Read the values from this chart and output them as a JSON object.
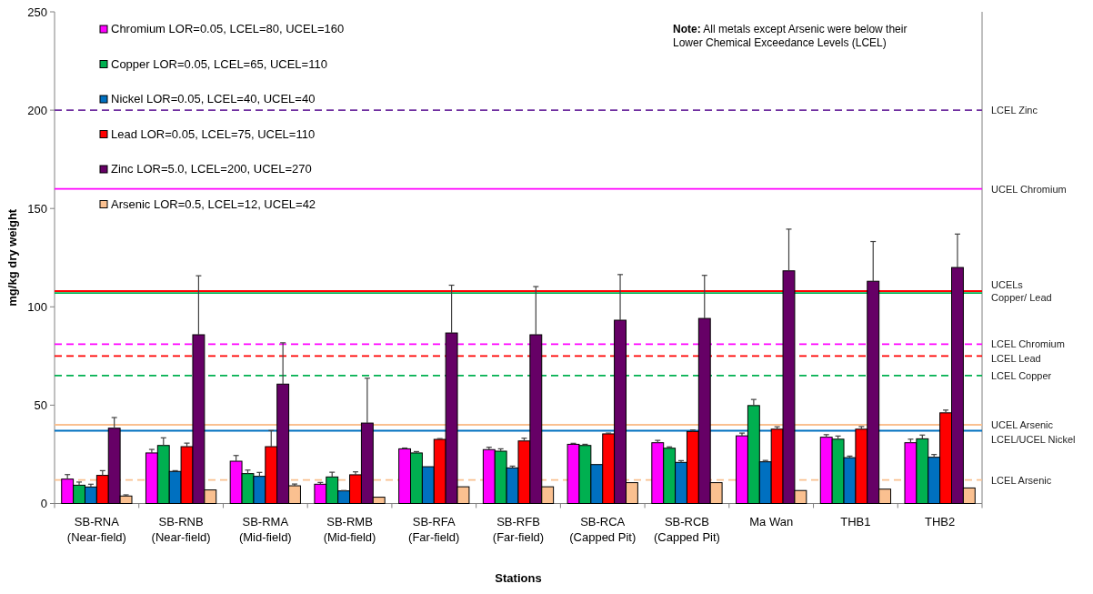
{
  "chart_data": {
    "type": "bar",
    "xlabel": "Stations",
    "ylabel": "mg/kg dry weight",
    "categories": [
      "SB-RNA\n(Near-field)",
      "SB-RNB\n(Near-field)",
      "SB-RMA\n(Mid-field)",
      "SB-RMB\n(Mid-field)",
      "SB-RFA\n(Far-field)",
      "SB-RFB\n(Far-field)",
      "SB-RCA\n(Capped Pit)",
      "SB-RCB\n(Capped Pit)",
      "Ma Wan",
      "THB1",
      "THB2"
    ],
    "series": [
      {
        "name": "Chromium LOR=0.05, LCEL=80, UCEL=160",
        "color": "#ff00ff",
        "values": [
          12.4,
          25.7,
          21.5,
          9.8,
          27.8,
          27.4,
          30.1,
          30.9,
          34.4,
          33.7,
          30.9
        ],
        "errors": [
          [
            12.4,
            14.7
          ],
          [
            25.7,
            27.5
          ],
          [
            21.5,
            24.4
          ],
          [
            9.8,
            10.7
          ],
          [
            27.8,
            28.2
          ],
          [
            27.4,
            28.6
          ],
          [
            30.1,
            30.6
          ],
          [
            30.9,
            32.1
          ],
          [
            34.4,
            35.8
          ],
          [
            33.7,
            35
          ],
          [
            30.9,
            32.7
          ]
        ]
      },
      {
        "name": "Copper LOR=0.05, LCEL=65, UCEL=110",
        "color": "#00b050",
        "values": [
          9.3,
          29.5,
          15.2,
          13.5,
          25.7,
          26.6,
          29.5,
          28.1,
          49.8,
          32.7,
          32.9
        ],
        "errors": [
          [
            9.3,
            10.9
          ],
          [
            29.5,
            33.4
          ],
          [
            15.2,
            17
          ],
          [
            13.5,
            15.9
          ],
          [
            25.7,
            26.4
          ],
          [
            26.6,
            27.8
          ],
          [
            29.5,
            30.1
          ],
          [
            28.1,
            28.8
          ],
          [
            49.8,
            52.9
          ],
          [
            32.7,
            34.3
          ],
          [
            32.9,
            34.8
          ]
        ]
      },
      {
        "name": "Nickel LOR=0.05, LCEL=40, UCEL=40",
        "color": "#0070c0",
        "values": [
          8.4,
          16.3,
          13.8,
          6.4,
          18.7,
          18.1,
          19.8,
          20.9,
          21.2,
          23.3,
          23.5
        ],
        "errors": [
          [
            8.4,
            9.8
          ],
          [
            16.3,
            16.7
          ],
          [
            13.8,
            15.8
          ],
          [
            6.4,
            6.6
          ],
          null,
          [
            18.1,
            19
          ],
          null,
          [
            20.9,
            21.8
          ],
          [
            21.2,
            21.9
          ],
          [
            23.3,
            24.1
          ],
          [
            23.5,
            24.9
          ]
        ]
      },
      {
        "name": "Lead LOR=0.05, LCEL=75, UCEL=110",
        "color": "#ff0000",
        "values": [
          14.3,
          28.9,
          28.9,
          14.6,
          32.6,
          31.8,
          35.4,
          36.6,
          37.8,
          37.8,
          46.1
        ],
        "errors": [
          [
            14.3,
            16.7
          ],
          [
            28.9,
            30.7
          ],
          [
            28.9,
            37.1
          ],
          [
            14.6,
            16.1
          ],
          [
            32.6,
            33
          ],
          [
            31.8,
            33.2
          ],
          [
            35.4,
            35.8
          ],
          [
            36.6,
            37.4
          ],
          [
            37.8,
            39
          ],
          [
            37.8,
            39.1
          ],
          [
            46.1,
            47.5
          ]
        ]
      },
      {
        "name": "Zinc LOR=5.0, LCEL=200, UCEL=270",
        "color": "#660066",
        "values": [
          38.3,
          85.8,
          60.7,
          40.9,
          86.7,
          85.8,
          93.2,
          94.1,
          118.3,
          113,
          120
        ],
        "errors": [
          [
            38.3,
            43.7
          ],
          [
            85.8,
            115.8
          ],
          [
            60.7,
            81.7
          ],
          [
            40.9,
            63.7
          ],
          [
            86.7,
            111
          ],
          [
            85.8,
            110.3
          ],
          [
            93.2,
            116.4
          ],
          [
            94.1,
            116
          ],
          [
            118.3,
            139.5
          ],
          [
            113,
            133.2
          ],
          [
            120,
            137
          ]
        ]
      },
      {
        "name": "Arsenic LOR=0.5, LCEL=12, UCEL=42",
        "color": "#fac090",
        "values": [
          3.8,
          6.9,
          9,
          3.2,
          8.5,
          8.5,
          10.6,
          10.6,
          6.6,
          7.3,
          7.9
        ],
        "errors": [
          [
            3.8,
            4.4
          ],
          null,
          [
            9,
            9.9
          ],
          null,
          null,
          null,
          null,
          null,
          null,
          null,
          null
        ]
      }
    ],
    "ylim": [
      0,
      250
    ],
    "yticks": [
      0,
      50,
      100,
      150,
      200,
      250
    ],
    "grid": false,
    "legend": "top left",
    "ref_lines": [
      {
        "axis": "y",
        "value": 200,
        "label": "LCEL Zinc",
        "color": "#7030a0",
        "line_style": "dashed"
      },
      {
        "axis": "y",
        "value": 160,
        "label": "UCEL Chromium",
        "color": "#ff00ff",
        "line_style": "solid"
      },
      {
        "axis": "y",
        "value": 107,
        "label": null,
        "color": "#00b050",
        "line_style": "solid"
      },
      {
        "axis": "y",
        "value": 108,
        "label": "UCELs\nCopper/ Lead",
        "color": "#ff0000",
        "line_style": "solid"
      },
      {
        "axis": "y",
        "value": 81,
        "label": "LCEL Chromium",
        "color": "#ff00ff",
        "line_style": "dashed"
      },
      {
        "axis": "y",
        "value": 75,
        "label": "LCEL Lead",
        "color": "#ff0000",
        "line_style": "dashed"
      },
      {
        "axis": "y",
        "value": 65,
        "label": "LCEL Copper",
        "color": "#00b050",
        "line_style": "dashed"
      },
      {
        "axis": "y",
        "value": 40,
        "label": "UCEL Arsenic",
        "color": "#fac090",
        "line_style": "solid"
      },
      {
        "axis": "y",
        "value": 37,
        "label": "LCEL/UCEL Nickel",
        "color": "#0070c0",
        "line_style": "solid"
      },
      {
        "axis": "y",
        "value": 12,
        "label": "LCEL Arsenic",
        "color": "#fac090",
        "line_style": "dashed"
      }
    ],
    "annotations": [
      "Note: All metals except Arsenic were below their Lower Chemical Exceedance Levels (LCEL)"
    ]
  }
}
